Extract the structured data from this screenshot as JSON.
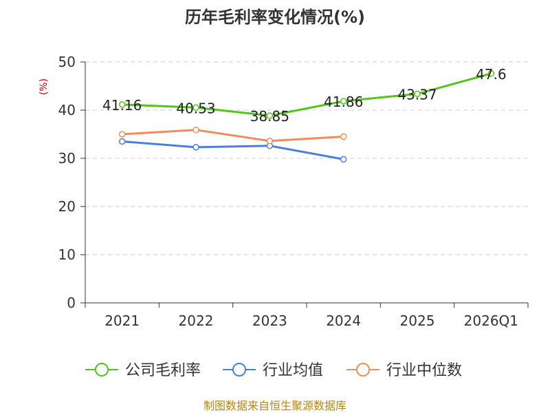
{
  "chart_data": {
    "type": "line",
    "title": "历年毛利率变化情况(%)",
    "ylabel": "(%)",
    "xlabel": "",
    "categories": [
      "2021",
      "2022",
      "2023",
      "2024",
      "2025",
      "2026Q1"
    ],
    "ylim": [
      0,
      50
    ],
    "yticks": [
      0,
      10,
      20,
      30,
      40,
      50
    ],
    "grid": true,
    "legend_position": "bottom",
    "series": [
      {
        "name": "公司毛利率",
        "color": "#52c41a",
        "values": [
          41.16,
          40.53,
          38.85,
          41.86,
          43.37,
          47.6
        ],
        "labels": [
          "41.16",
          "40.53",
          "38.85",
          "41.86",
          "43.37",
          "47.6"
        ]
      },
      {
        "name": "行业均值",
        "color": "#4a7fdc",
        "values": [
          33.5,
          32.3,
          32.6,
          29.8,
          null,
          null
        ]
      },
      {
        "name": "行业中位数",
        "color": "#f08c5a",
        "values": [
          35.0,
          35.9,
          33.6,
          34.5,
          null,
          null
        ]
      }
    ]
  },
  "source": "制图数据来自恒生聚源数据库"
}
